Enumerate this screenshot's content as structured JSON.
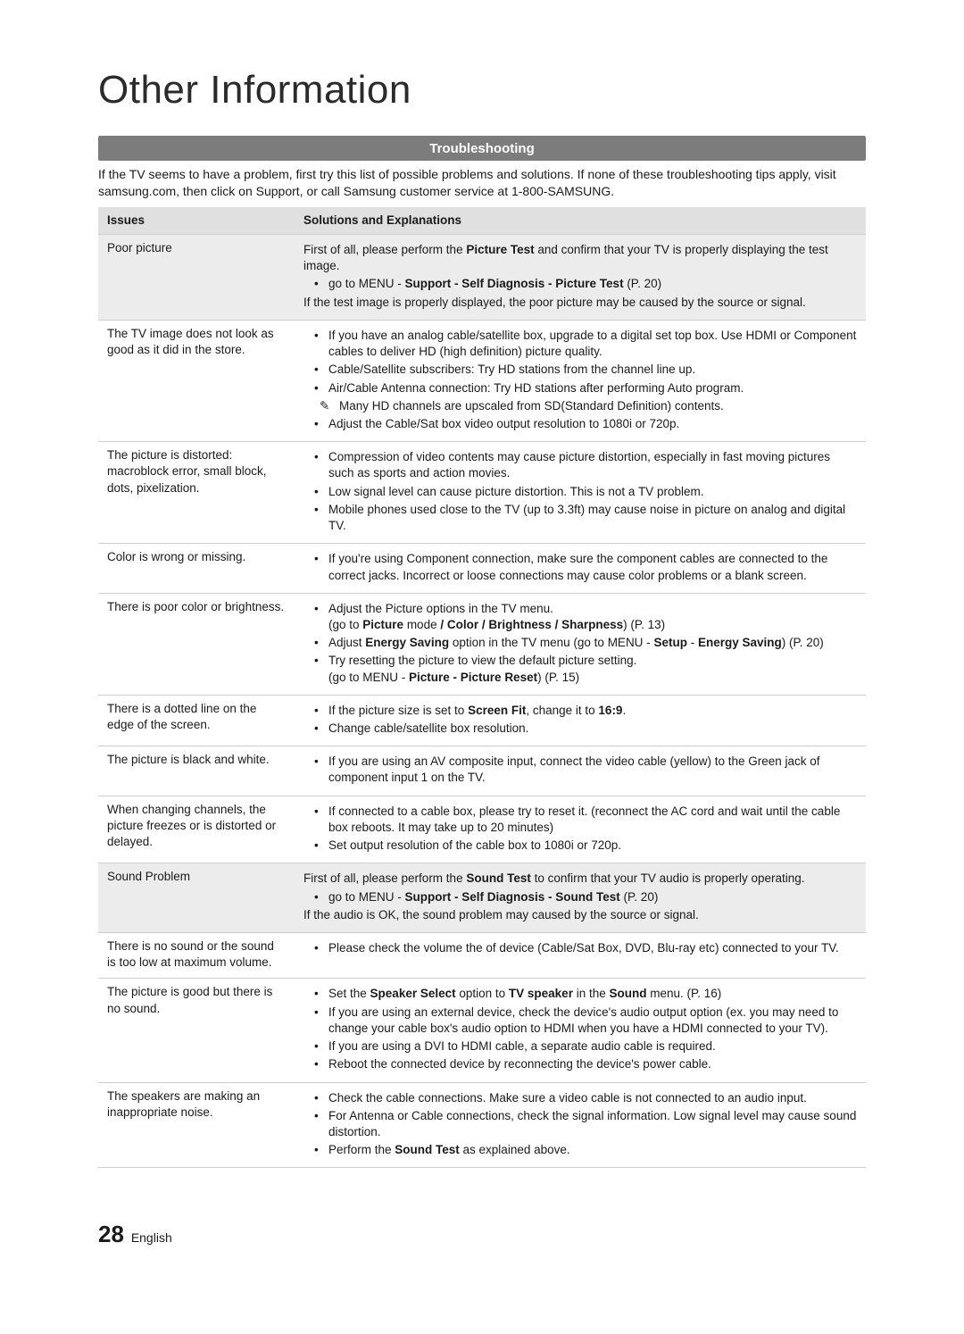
{
  "title": "Other Information",
  "sectionBar": "Troubleshooting",
  "intro": "If the TV seems to have a problem, first try this list of possible problems and solutions. If none of these troubleshooting tips apply, visit samsung.com, then click on Support, or call Samsung customer service at 1-800-SAMSUNG.",
  "headers": {
    "issues": "Issues",
    "solutions": "Solutions and Explanations"
  },
  "rows": [
    {
      "shaded": true,
      "issue": "Poor picture",
      "solution": [
        {
          "type": "p",
          "runs": [
            [
              "",
              "First of all, please perform the "
            ],
            [
              "b",
              "Picture Test"
            ],
            [
              "",
              " and confirm that your TV is properly displaying the test image."
            ]
          ]
        },
        {
          "type": "li",
          "runs": [
            [
              "",
              "go to MENU - "
            ],
            [
              "b",
              "Support - Self Diagnosis - Picture Test"
            ],
            [
              "",
              " (P. 20)"
            ]
          ]
        },
        {
          "type": "p",
          "runs": [
            [
              "",
              "If the test image is properly displayed, the poor picture may be caused by the source or signal."
            ]
          ]
        }
      ]
    },
    {
      "issue": "The TV image does not look as good as it did in the store.",
      "solution": [
        {
          "type": "li",
          "runs": [
            [
              "",
              "If you have an analog cable/satellite box, upgrade to a digital set top box. Use HDMI or Component cables to deliver HD (high definition) picture quality."
            ]
          ]
        },
        {
          "type": "li",
          "runs": [
            [
              "",
              "Cable/Satellite subscribers: Try HD stations from the channel line up."
            ]
          ]
        },
        {
          "type": "li",
          "runs": [
            [
              "",
              "Air/Cable Antenna connection: Try HD stations after performing Auto program."
            ]
          ]
        },
        {
          "type": "note",
          "runs": [
            [
              "",
              "Many HD channels are upscaled from SD(Standard Definition) contents."
            ]
          ]
        },
        {
          "type": "li",
          "runs": [
            [
              "",
              "Adjust the Cable/Sat box video output resolution to 1080i or 720p."
            ]
          ]
        }
      ]
    },
    {
      "issue": "The picture is distorted: macroblock error, small block, dots, pixelization.",
      "solution": [
        {
          "type": "li",
          "runs": [
            [
              "",
              "Compression of video contents may cause picture distortion, especially in fast moving pictures such as sports and action movies."
            ]
          ]
        },
        {
          "type": "li",
          "runs": [
            [
              "",
              "Low signal level can cause picture distortion. This is not a TV problem."
            ]
          ]
        },
        {
          "type": "li",
          "runs": [
            [
              "",
              "Mobile phones used close to the TV (up to 3.3ft) may cause noise in picture on analog and digital TV."
            ]
          ]
        }
      ]
    },
    {
      "issue": "Color is wrong or missing.",
      "solution": [
        {
          "type": "li",
          "runs": [
            [
              "",
              "If you're using Component connection, make sure the component cables are connected to the correct jacks. Incorrect or loose connections may cause color problems or a blank screen."
            ]
          ]
        }
      ]
    },
    {
      "issue": "There is poor color or brightness.",
      "solution": [
        {
          "type": "li",
          "runs": [
            [
              "",
              "Adjust the Picture options in the TV menu.\n(go to "
            ],
            [
              "b",
              "Picture"
            ],
            [
              "",
              " mode "
            ],
            [
              "b",
              "/ Color / Brightness / Sharpness"
            ],
            [
              "",
              ") (P. 13)"
            ]
          ]
        },
        {
          "type": "li",
          "runs": [
            [
              "",
              "Adjust "
            ],
            [
              "b",
              "Energy Saving"
            ],
            [
              "",
              " option in the TV menu (go to MENU - "
            ],
            [
              "b",
              "Setup"
            ],
            [
              "",
              " - "
            ],
            [
              "b",
              "Energy Saving"
            ],
            [
              "",
              ") (P. 20)"
            ]
          ]
        },
        {
          "type": "li",
          "runs": [
            [
              "",
              "Try resetting the picture to view the default picture setting.\n(go to MENU - "
            ],
            [
              "b",
              "Picture - Picture Reset"
            ],
            [
              "",
              ") (P. 15)"
            ]
          ]
        }
      ]
    },
    {
      "issue": "There is a dotted line on the edge of the screen.",
      "solution": [
        {
          "type": "li",
          "runs": [
            [
              "",
              "If the picture size is set to "
            ],
            [
              "b",
              "Screen Fit"
            ],
            [
              "",
              ", change it to "
            ],
            [
              "b",
              "16:9"
            ],
            [
              "",
              "."
            ]
          ]
        },
        {
          "type": "li",
          "runs": [
            [
              "",
              "Change cable/satellite box resolution."
            ]
          ]
        }
      ]
    },
    {
      "issue": "The picture is black and white.",
      "solution": [
        {
          "type": "li",
          "runs": [
            [
              "",
              "If you are using an AV composite input, connect the video cable (yellow) to the Green jack of component input 1 on the TV."
            ]
          ]
        }
      ]
    },
    {
      "issue": "When changing channels, the picture freezes or is distorted or delayed.",
      "solution": [
        {
          "type": "li",
          "runs": [
            [
              "",
              "If connected to a cable box, please try to reset it. (reconnect the AC cord and wait until the cable box reboots. It may take up to 20 minutes)"
            ]
          ]
        },
        {
          "type": "li",
          "runs": [
            [
              "",
              "Set output resolution of the cable box to 1080i or 720p."
            ]
          ]
        }
      ]
    },
    {
      "shaded": true,
      "issue": "Sound Problem",
      "solution": [
        {
          "type": "p",
          "runs": [
            [
              "",
              "First of all, please perform the "
            ],
            [
              "b",
              "Sound Test"
            ],
            [
              "",
              " to confirm that your TV audio is properly operating."
            ]
          ]
        },
        {
          "type": "li",
          "runs": [
            [
              "",
              "go to MENU - "
            ],
            [
              "b",
              "Support - Self Diagnosis - Sound Test"
            ],
            [
              "",
              " (P. 20)"
            ]
          ]
        },
        {
          "type": "p",
          "runs": [
            [
              "",
              "If the audio is OK, the sound problem may caused by the source or signal."
            ]
          ]
        }
      ]
    },
    {
      "issue": "There is no sound or the sound is too low at maximum volume.",
      "solution": [
        {
          "type": "li",
          "runs": [
            [
              "",
              "Please check the volume the of device (Cable/Sat Box, DVD, Blu-ray etc) connected to your TV."
            ]
          ]
        }
      ]
    },
    {
      "issue": "The picture is good but there is no sound.",
      "solution": [
        {
          "type": "li",
          "runs": [
            [
              "",
              "Set the "
            ],
            [
              "b",
              "Speaker Select"
            ],
            [
              "",
              " option to "
            ],
            [
              "b",
              "TV speaker"
            ],
            [
              "",
              " in the "
            ],
            [
              "b",
              "Sound"
            ],
            [
              "",
              " menu. (P. 16)"
            ]
          ]
        },
        {
          "type": "li",
          "runs": [
            [
              "",
              "If you are using an external device, check the device's audio output option (ex. you may need to change your cable box's audio option to HDMI when you have a HDMI connected to your TV)."
            ]
          ]
        },
        {
          "type": "li",
          "runs": [
            [
              "",
              "If you are using a DVI to HDMI cable, a separate audio cable is required."
            ]
          ]
        },
        {
          "type": "li",
          "runs": [
            [
              "",
              "Reboot the connected device by reconnecting the device's power cable."
            ]
          ]
        }
      ]
    },
    {
      "issue": "The speakers are making an inappropriate noise.",
      "solution": [
        {
          "type": "li",
          "runs": [
            [
              "",
              "Check the cable connections. Make sure a video cable is not connected to an audio input."
            ]
          ]
        },
        {
          "type": "li",
          "runs": [
            [
              "",
              "For Antenna or Cable connections, check the signal information. Low signal level may cause sound distortion."
            ]
          ]
        },
        {
          "type": "li",
          "runs": [
            [
              "",
              "Perform the "
            ],
            [
              "b",
              "Sound Test"
            ],
            [
              "",
              " as explained above."
            ]
          ]
        }
      ]
    }
  ],
  "footer": {
    "pageNumber": "28",
    "language": "English"
  }
}
